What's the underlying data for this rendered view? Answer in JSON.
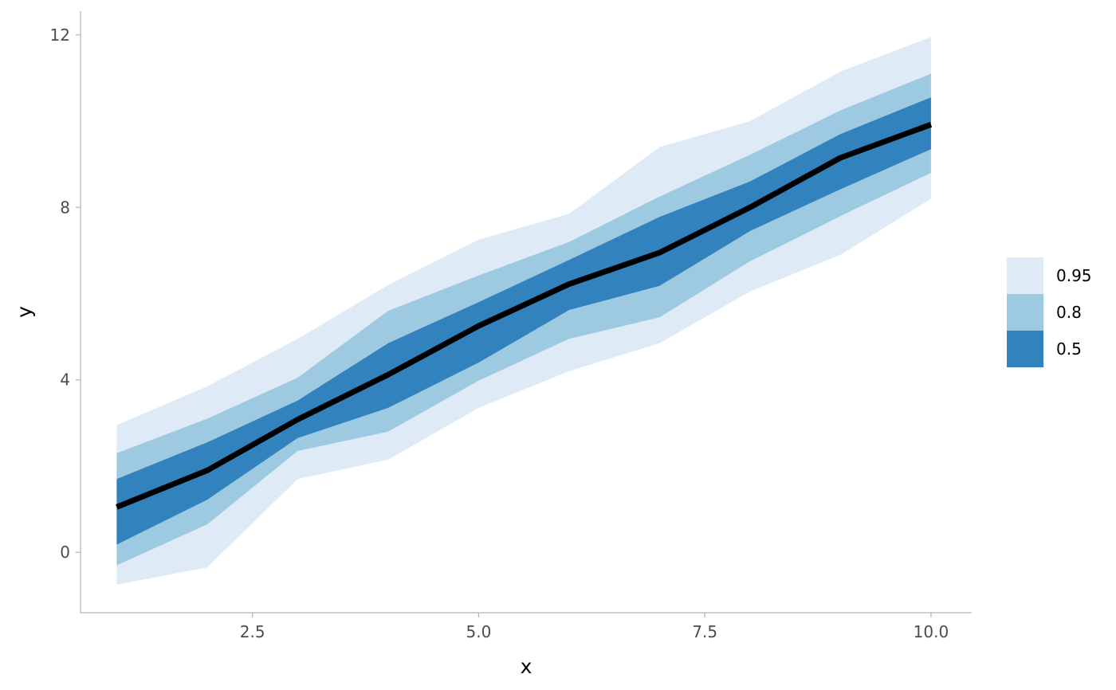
{
  "chart_data": {
    "type": "area",
    "xlabel": "x",
    "ylabel": "y",
    "xlim": [
      0.6,
      10.45
    ],
    "ylim": [
      -1.4,
      12.55
    ],
    "x_ticks": [
      "2.5",
      "5.0",
      "7.5",
      "10.0"
    ],
    "x_tick_values": [
      2.5,
      5.0,
      7.5,
      10.0
    ],
    "y_ticks": [
      "0",
      "4",
      "8",
      "12"
    ],
    "y_tick_values": [
      0,
      4,
      8,
      12
    ],
    "grid": false,
    "legend_position": "right",
    "x": [
      1,
      2,
      3,
      4,
      5,
      6,
      7,
      8,
      9,
      10
    ],
    "median": [
      1.05,
      1.9,
      3.08,
      4.12,
      5.25,
      6.22,
      6.95,
      8.0,
      9.15,
      9.92
    ],
    "bands": [
      {
        "level": "0.95",
        "color": "#deebf7",
        "lower": [
          -0.75,
          -0.35,
          1.7,
          2.15,
          3.35,
          4.2,
          4.85,
          6.05,
          6.9,
          8.2
        ],
        "upper": [
          2.95,
          3.85,
          4.95,
          6.2,
          7.25,
          7.85,
          9.4,
          10.0,
          11.15,
          11.95
        ]
      },
      {
        "level": "0.8",
        "color": "#9ecae1",
        "lower": [
          -0.3,
          0.65,
          2.35,
          2.8,
          3.98,
          4.95,
          5.45,
          6.75,
          7.8,
          8.8
        ],
        "upper": [
          2.3,
          3.1,
          4.05,
          5.6,
          6.42,
          7.2,
          8.25,
          9.22,
          10.25,
          11.1
        ]
      },
      {
        "level": "0.5",
        "color": "#3182bd",
        "lower": [
          0.18,
          1.22,
          2.65,
          3.35,
          4.4,
          5.62,
          6.18,
          7.45,
          8.42,
          9.35
        ],
        "upper": [
          1.7,
          2.55,
          3.52,
          4.85,
          5.8,
          6.78,
          7.78,
          8.6,
          9.7,
          10.55
        ]
      }
    ],
    "median_color": "#000000",
    "legend": [
      "0.95",
      "0.8",
      "0.5"
    ]
  }
}
